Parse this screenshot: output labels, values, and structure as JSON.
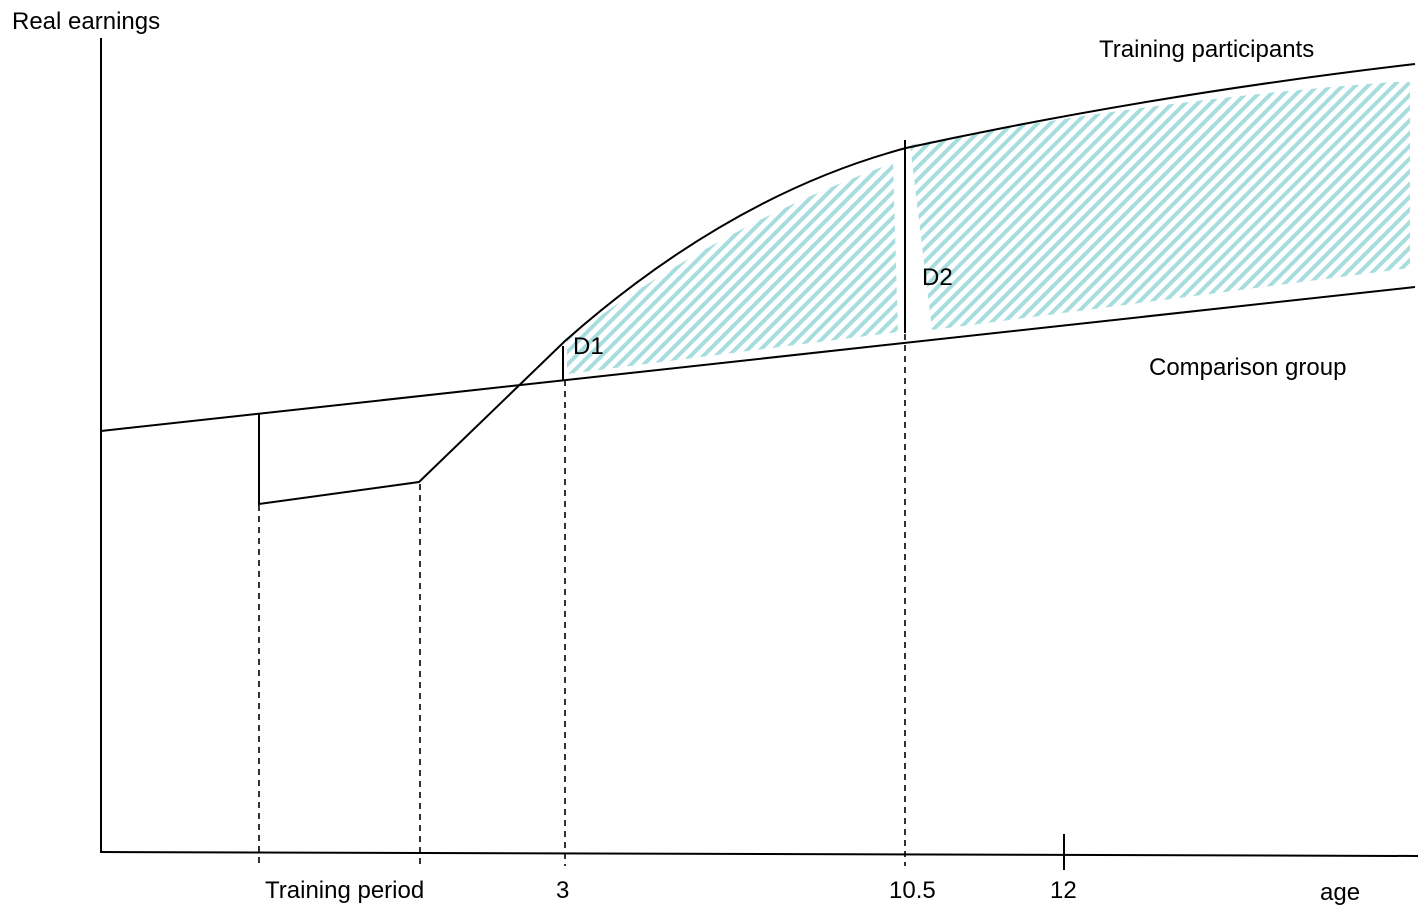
{
  "labels": {
    "y_axis": "Real earnings",
    "x_axis": "age",
    "training_participants": "Training participants",
    "comparison_group": "Comparison group",
    "d1": "D1",
    "d2": "D2",
    "training_period": "Training period",
    "tick_3": "3",
    "tick_10_5": "10.5",
    "tick_12": "12"
  },
  "colors": {
    "hatch": "#a8dde0",
    "lines": "#000000"
  }
}
